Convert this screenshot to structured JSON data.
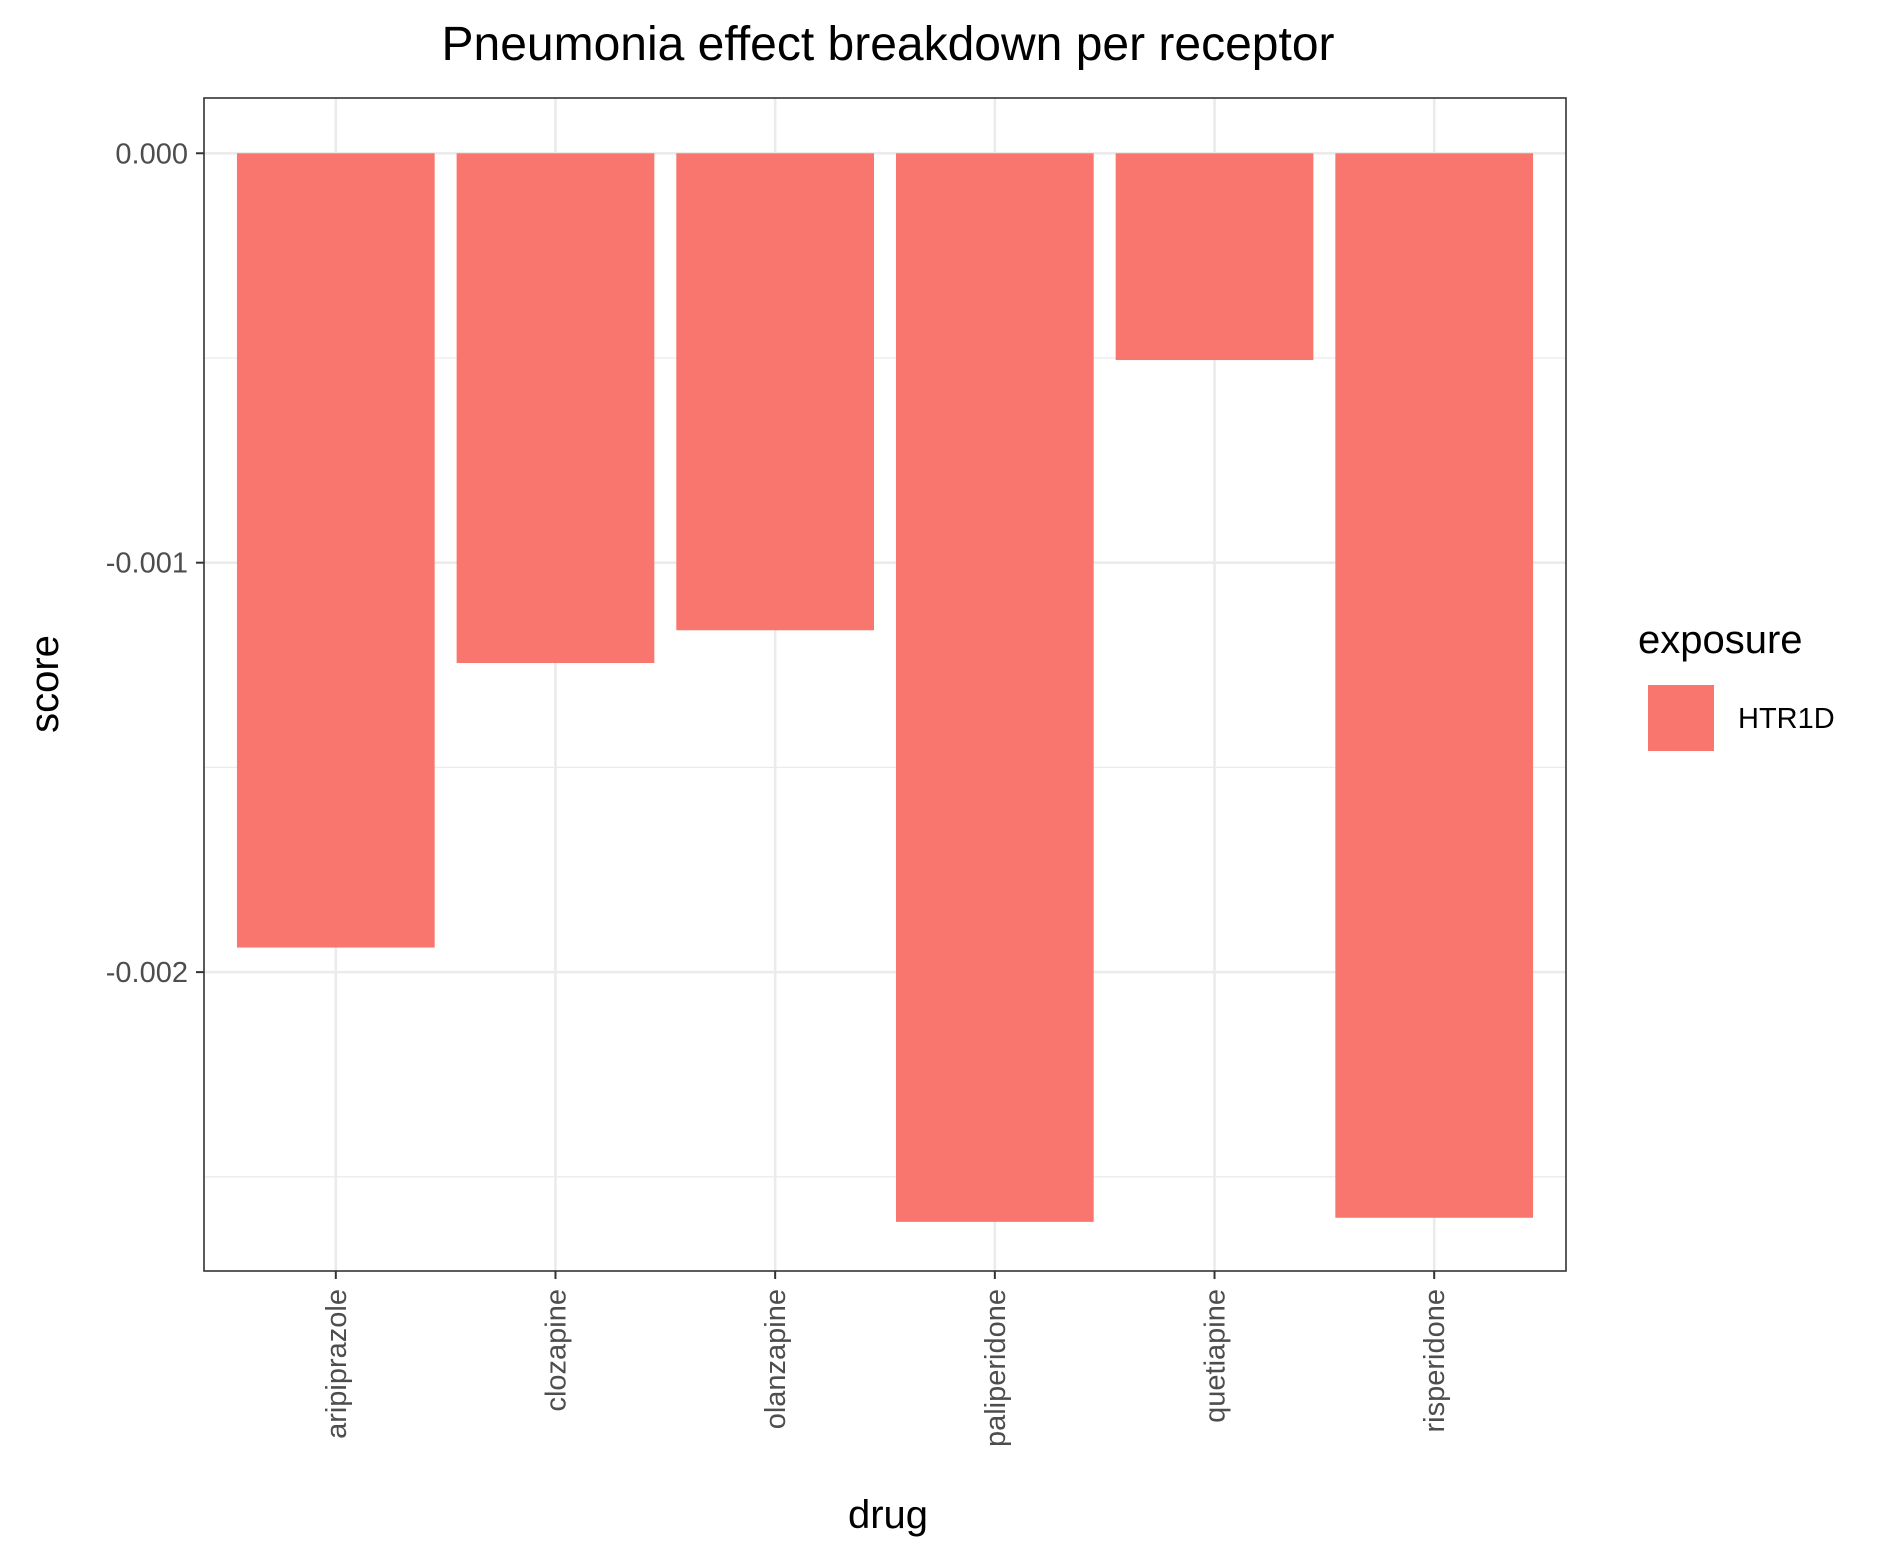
{
  "chart_data": {
    "type": "bar",
    "title": "Pneumonia effect breakdown per receptor",
    "xlabel": "drug",
    "ylabel": "score",
    "categories": [
      "aripiprazole",
      "clozapine",
      "olanzapine",
      "paliperidone",
      "quetiapine",
      "risperidone"
    ],
    "series": [
      {
        "name": "HTR1D",
        "color": "#F8766D",
        "values": [
          -0.00194,
          -0.001245,
          -0.001165,
          -0.00261,
          -0.000505,
          -0.0026
        ]
      }
    ],
    "ylim": [
      -0.00273,
      0.000135
    ],
    "yticks": [
      0.0,
      -0.001,
      -0.002
    ],
    "ytick_labels": [
      "0.000",
      "-0.001",
      "-0.002"
    ],
    "legend": {
      "title": "exposure",
      "placement": "right"
    },
    "grid": true
  }
}
